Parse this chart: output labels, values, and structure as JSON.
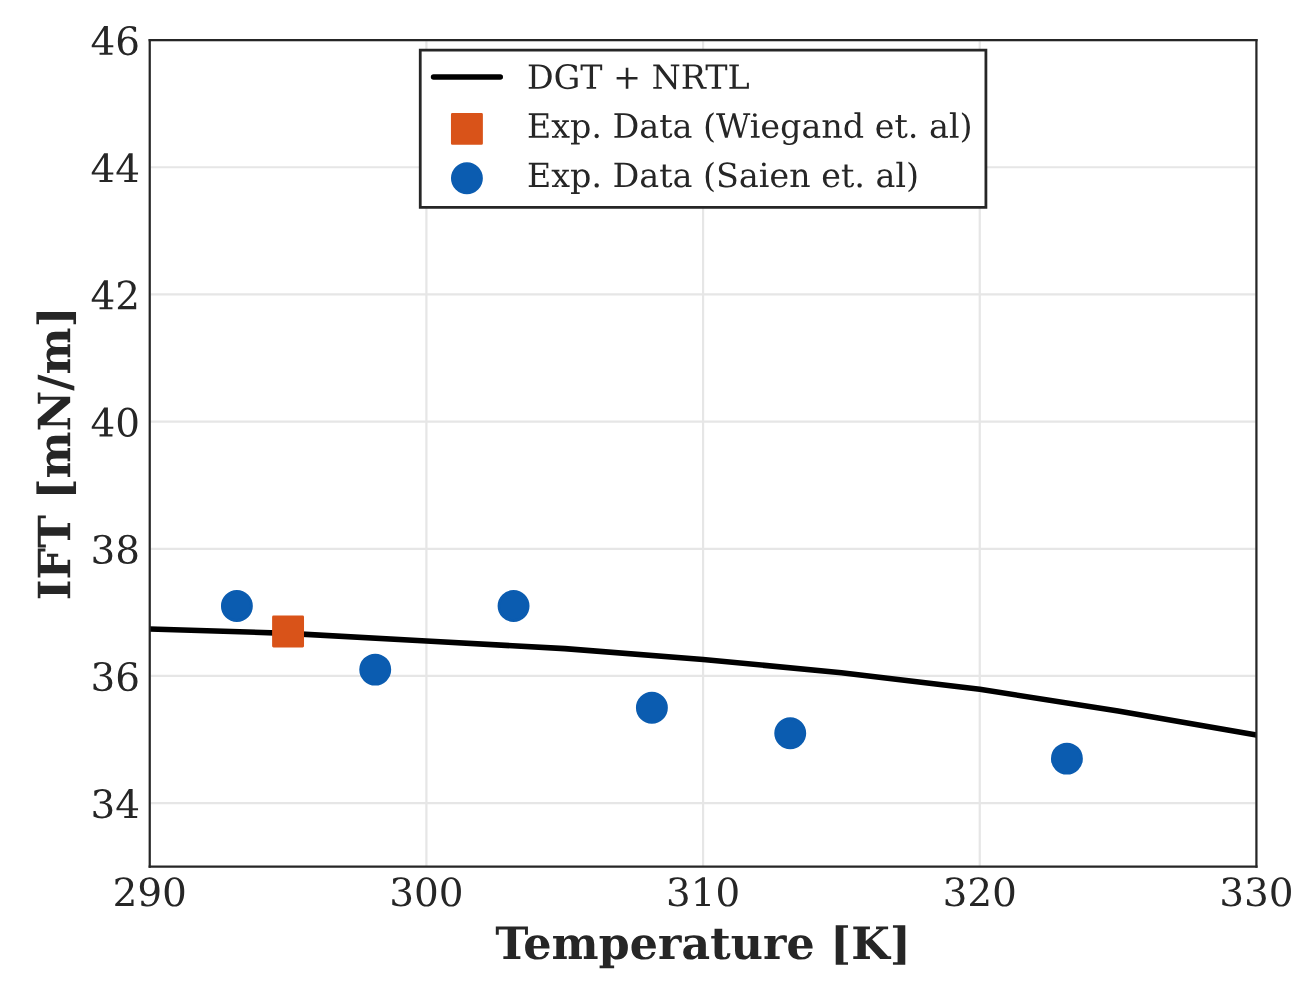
{
  "chart_data": {
    "type": "line",
    "xlabel": "Temperature [K]",
    "ylabel": "IFT [mN/m]",
    "xlim": [
      290,
      330
    ],
    "ylim": [
      33,
      46
    ],
    "xticks": [
      290,
      300,
      310,
      320,
      330
    ],
    "yticks": [
      34,
      36,
      38,
      40,
      42,
      44,
      46
    ],
    "grid": true,
    "legend": "top",
    "series": [
      {
        "name": "DGT + NRTL",
        "color": "#000000",
        "line_style": "solid",
        "marker": "none",
        "x": [
          290,
          295,
          300,
          305,
          310,
          315,
          320,
          325,
          330
        ],
        "values": [
          36.74,
          36.67,
          36.55,
          36.43,
          36.26,
          36.05,
          35.79,
          35.45,
          35.07
        ]
      },
      {
        "name": "Exp. Data (Wiegand et. al)",
        "type": "scatter",
        "color": "#d95319",
        "marker": "square",
        "x": [
          295
        ],
        "values": [
          36.7
        ]
      },
      {
        "name": "Exp. Data (Saien et. al)",
        "type": "scatter",
        "color": "#0b5cb0",
        "marker": "circle",
        "x": [
          293.15,
          298.15,
          303.15,
          308.15,
          313.15,
          323.15
        ],
        "values": [
          37.1,
          36.1,
          37.1,
          35.5,
          35.1,
          34.7
        ]
      }
    ]
  }
}
